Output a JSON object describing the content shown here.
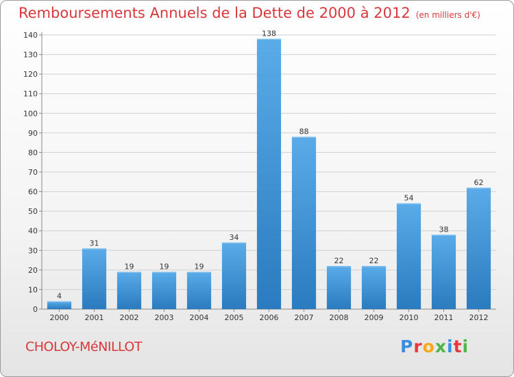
{
  "header": {
    "title": "Remboursements Annuels de la Dette de 2000 à 2012",
    "subtitle": "(en milliers d'€)"
  },
  "commune": "CHOLOY-MéNILLOT",
  "logo": {
    "letters": [
      "P",
      "r",
      "o",
      "x",
      "i",
      "t",
      "i"
    ],
    "colors": [
      "#3a8ee0",
      "#e8383d",
      "#f6a81c",
      "#4cb648",
      "#3a8ee0",
      "#e8383d",
      "#4cb648"
    ]
  },
  "colors": {
    "bar_top": "#5aabe8",
    "bar_bottom": "#2a7bbf",
    "axis": "#888888",
    "grid": "#d0d0d0",
    "text": "#333333"
  },
  "chart_data": {
    "type": "bar",
    "categories": [
      "2000",
      "2001",
      "2002",
      "2003",
      "2004",
      "2005",
      "2006",
      "2007",
      "2008",
      "2009",
      "2010",
      "2011",
      "2012"
    ],
    "values": [
      4,
      31,
      19,
      19,
      19,
      34,
      138,
      88,
      22,
      22,
      54,
      38,
      62
    ],
    "ylim": [
      0,
      140
    ],
    "yticks": [
      0,
      10,
      20,
      30,
      40,
      50,
      60,
      70,
      80,
      90,
      100,
      110,
      120,
      130,
      140
    ],
    "data_labels": [
      "4",
      "31",
      "19",
      "19",
      "19",
      "34",
      "138",
      "88",
      "22",
      "22",
      "54",
      "38",
      "62"
    ],
    "grid": true
  }
}
